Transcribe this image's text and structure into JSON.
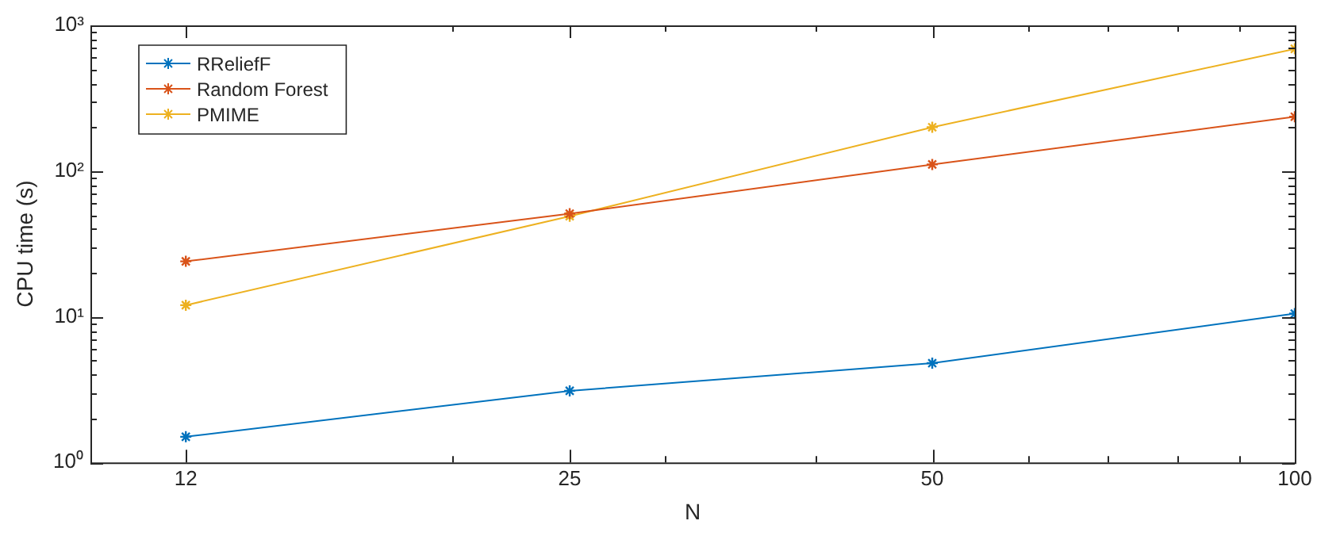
{
  "chart_data": {
    "type": "line",
    "xlabel": "N",
    "ylabel": "CPU time (s)",
    "x": [
      12,
      25,
      50,
      100
    ],
    "series": [
      {
        "name": "RReliefF",
        "color": "#0072bd",
        "values": [
          1.5,
          3.1,
          4.8,
          10.5
        ]
      },
      {
        "name": "Random Forest",
        "color": "#d95319",
        "values": [
          24,
          51,
          111,
          236
        ]
      },
      {
        "name": "PMIME",
        "color": "#edb120",
        "values": [
          12,
          49,
          200,
          690
        ]
      }
    ],
    "log": "xy",
    "xlim": [
      10,
      100
    ],
    "xticks": [
      12,
      25,
      50,
      100
    ],
    "ylim": [
      1,
      1000
    ],
    "yticks": [
      {
        "value": 1,
        "label": "10⁰"
      },
      {
        "value": 10,
        "label": "10¹"
      },
      {
        "value": 100,
        "label": "10²"
      },
      {
        "value": 1000,
        "label": "10³"
      }
    ],
    "marker": "cross",
    "line_style": "solid",
    "legend": "top left",
    "grid": false
  }
}
